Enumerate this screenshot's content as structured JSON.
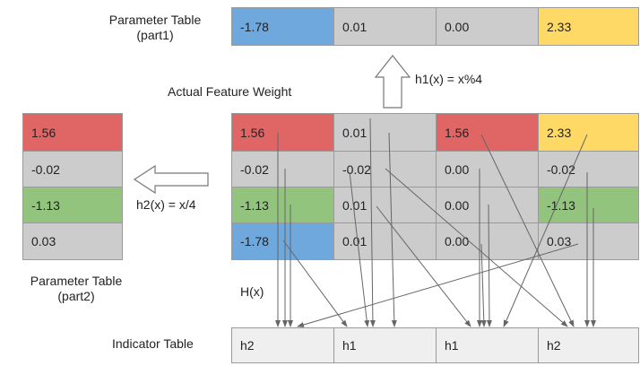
{
  "colors": {
    "red": "#e06666",
    "blue": "#6fa8dc",
    "green": "#93c47d",
    "yellow": "#ffd966",
    "gray": "#cccccc",
    "indicator": "#efefef"
  },
  "labels": {
    "param_table_part1": [
      "Parameter Table",
      "(part1)"
    ],
    "param_table_part2": [
      "Parameter Table",
      "(part2)"
    ],
    "actual_feature_weight": "Actual Feature Weight",
    "h1": "h1(x) = x%4",
    "h2": "h2(x) = x/4",
    "hx": "H(x)",
    "indicator_table": "Indicator Table"
  },
  "part1": [
    {
      "value": "-1.78",
      "color": "blue"
    },
    {
      "value": "0.01",
      "color": "gray"
    },
    {
      "value": "0.00",
      "color": "gray"
    },
    {
      "value": "2.33",
      "color": "yellow"
    }
  ],
  "weights": [
    [
      {
        "value": "1.56",
        "color": "red"
      },
      {
        "value": "0.01",
        "color": "gray"
      },
      {
        "value": "1.56",
        "color": "red"
      },
      {
        "value": "2.33",
        "color": "yellow"
      }
    ],
    [
      {
        "value": "-0.02",
        "color": "gray"
      },
      {
        "value": "-0.02",
        "color": "gray"
      },
      {
        "value": "0.00",
        "color": "gray"
      },
      {
        "value": "-0.02",
        "color": "gray"
      }
    ],
    [
      {
        "value": "-1.13",
        "color": "green"
      },
      {
        "value": "0.01",
        "color": "gray"
      },
      {
        "value": "0.00",
        "color": "gray"
      },
      {
        "value": "-1.13",
        "color": "green"
      }
    ],
    [
      {
        "value": "-1.78",
        "color": "blue"
      },
      {
        "value": "0.01",
        "color": "gray"
      },
      {
        "value": "0.00",
        "color": "gray"
      },
      {
        "value": "0.03",
        "color": "gray"
      }
    ]
  ],
  "part2": [
    {
      "value": "1.56",
      "color": "red"
    },
    {
      "value": "-0.02",
      "color": "gray"
    },
    {
      "value": "-1.13",
      "color": "green"
    },
    {
      "value": "0.03",
      "color": "gray"
    }
  ],
  "indicator": [
    {
      "value": "h2"
    },
    {
      "value": "h1"
    },
    {
      "value": "h1"
    },
    {
      "value": "h2"
    }
  ]
}
